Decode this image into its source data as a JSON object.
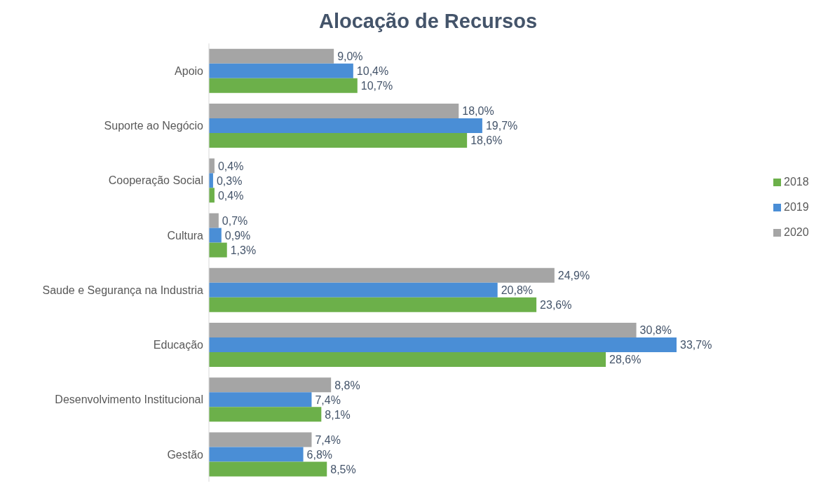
{
  "chart_data": {
    "type": "bar",
    "orientation": "horizontal",
    "title": "Alocação de Recursos",
    "categories": [
      "Apoio",
      "Suporte ao Negócio",
      "Cooperação Social",
      "Cultura",
      "Saude e Segurança na Industria",
      "Educação",
      "Desenvolvimento Institucional",
      "Gestão"
    ],
    "series": [
      {
        "name": "2020",
        "color": "#a5a5a5",
        "values": [
          9.0,
          18.0,
          0.4,
          0.7,
          24.9,
          30.8,
          8.8,
          7.4
        ],
        "value_labels": [
          "9,0%",
          "18,0%",
          "0,4%",
          "0,7%",
          "24,9%",
          "30,8%",
          "8,8%",
          "7,4%"
        ]
      },
      {
        "name": "2019",
        "color": "#4a8ed6",
        "values": [
          10.4,
          19.7,
          0.3,
          0.9,
          20.8,
          33.7,
          7.4,
          6.8
        ],
        "value_labels": [
          "10,4%",
          "19,7%",
          "0,3%",
          "0,9%",
          "20,8%",
          "33,7%",
          "7,4%",
          "6,8%"
        ]
      },
      {
        "name": "2018",
        "color": "#6cb04a",
        "values": [
          10.7,
          18.6,
          0.4,
          1.3,
          23.6,
          28.6,
          8.1,
          8.5
        ],
        "value_labels": [
          "10,7%",
          "18,6%",
          "0,4%",
          "1,3%",
          "23,6%",
          "28,6%",
          "8,1%",
          "8,5%"
        ]
      }
    ],
    "legend": "right",
    "grid": false
  }
}
